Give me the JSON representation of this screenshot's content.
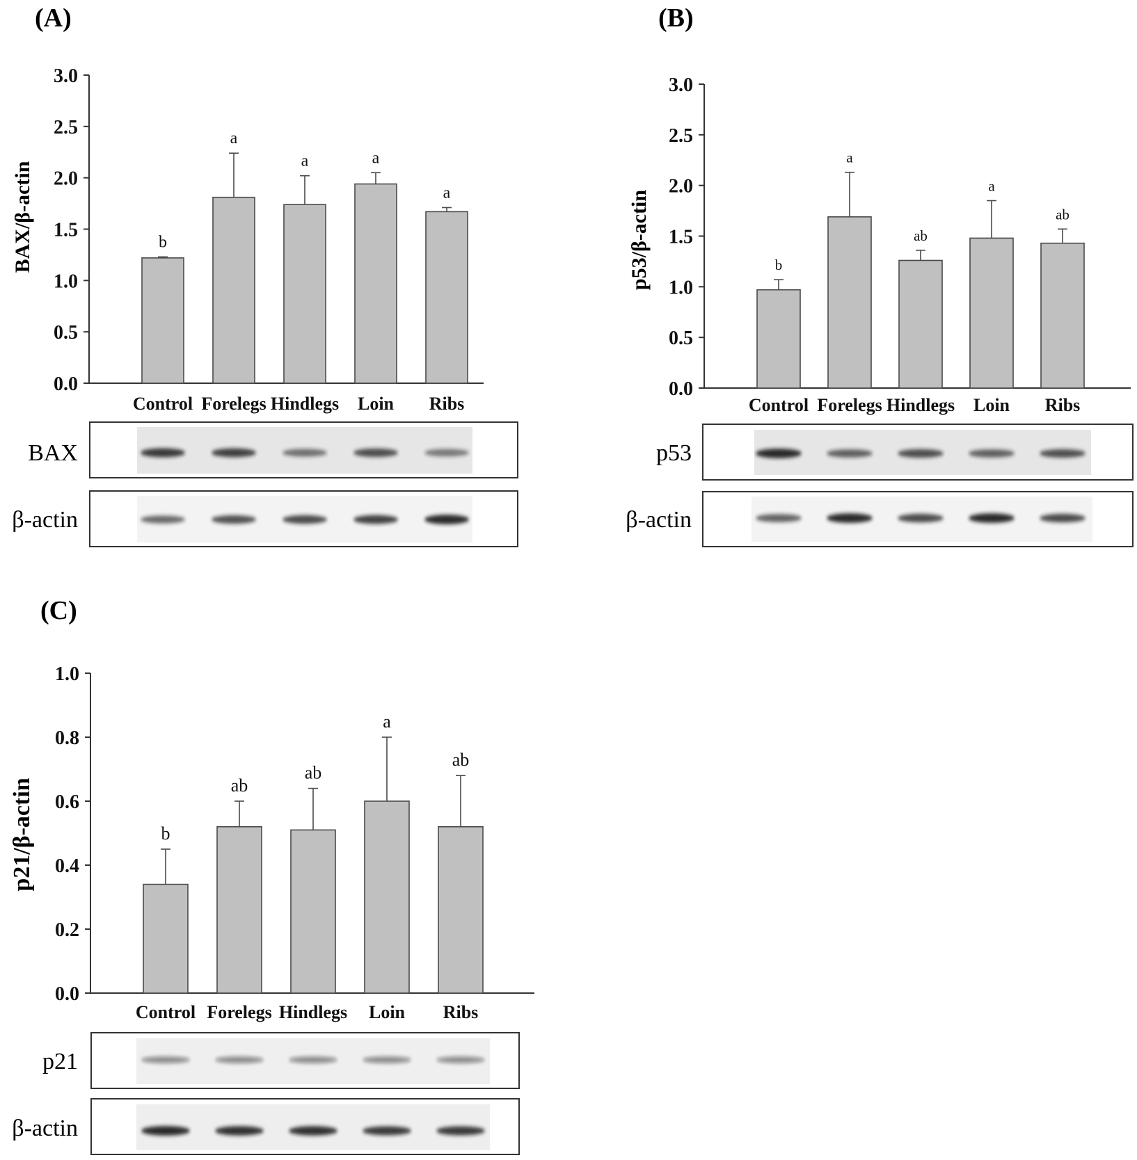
{
  "chart_data": [
    {
      "panel_label": "(A)",
      "type": "bar",
      "categories": [
        "Control",
        "Forelegs",
        "Hindlegs",
        "Loin",
        "Ribs"
      ],
      "values": [
        1.22,
        1.81,
        1.74,
        1.94,
        1.67
      ],
      "errors": [
        0.01,
        0.43,
        0.28,
        0.11,
        0.04
      ],
      "letters": [
        "b",
        "a",
        "a",
        "a",
        "a"
      ],
      "ylabel": "BAX/β-actin",
      "ylim": [
        0,
        3.0
      ],
      "yticks": [
        "0.0",
        "0.5",
        "1.0",
        "1.5",
        "2.0",
        "2.5",
        "3.0"
      ],
      "blots": [
        {
          "label": "BAX",
          "intensity": [
            0.85,
            0.8,
            0.5,
            0.72,
            0.45
          ]
        },
        {
          "label": "β-actin",
          "intensity": [
            0.55,
            0.7,
            0.75,
            0.8,
            0.95
          ]
        }
      ]
    },
    {
      "panel_label": "(B)",
      "type": "bar",
      "categories": [
        "Control",
        "Forelegs",
        "Hindlegs",
        "Loin",
        "Ribs"
      ],
      "values": [
        0.97,
        1.69,
        1.26,
        1.48,
        1.43
      ],
      "errors": [
        0.1,
        0.44,
        0.1,
        0.37,
        0.14
      ],
      "letters": [
        "b",
        "a",
        "ab",
        "a",
        "ab"
      ],
      "ylabel": "p53/β-actin",
      "ylim": [
        0,
        3.0
      ],
      "yticks": [
        "0.0",
        "0.5",
        "1.0",
        "1.5",
        "2.0",
        "2.5",
        "3.0"
      ],
      "blots": [
        {
          "label": "p53",
          "intensity": [
            0.95,
            0.6,
            0.72,
            0.6,
            0.7
          ]
        },
        {
          "label": "β-actin",
          "intensity": [
            0.6,
            0.95,
            0.75,
            0.95,
            0.75
          ]
        }
      ]
    },
    {
      "panel_label": "(C)",
      "type": "bar",
      "categories": [
        "Control",
        "Forelegs",
        "Hindlegs",
        "Loin",
        "Ribs"
      ],
      "values": [
        0.34,
        0.52,
        0.51,
        0.6,
        0.52
      ],
      "errors": [
        0.11,
        0.08,
        0.13,
        0.2,
        0.16
      ],
      "letters": [
        "b",
        "ab",
        "ab",
        "a",
        "ab"
      ],
      "ylabel": "p21/β-actin",
      "ylim": [
        0,
        1.0
      ],
      "yticks": [
        "0.0",
        "0.2",
        "0.4",
        "0.6",
        "0.8",
        "1.0"
      ],
      "blots": [
        {
          "label": "p21",
          "intensity": [
            0.3,
            0.3,
            0.3,
            0.3,
            0.28
          ]
        },
        {
          "label": "β-actin",
          "intensity": [
            0.95,
            0.9,
            0.9,
            0.85,
            0.85
          ]
        }
      ]
    }
  ],
  "colors": {
    "bar_fill": "#c0c0c0",
    "bar_stroke": "#4a4a4a",
    "axis": "#333333",
    "text": "#111111",
    "blot_background": "#e6e6e6",
    "band": "#1a1a1a"
  }
}
